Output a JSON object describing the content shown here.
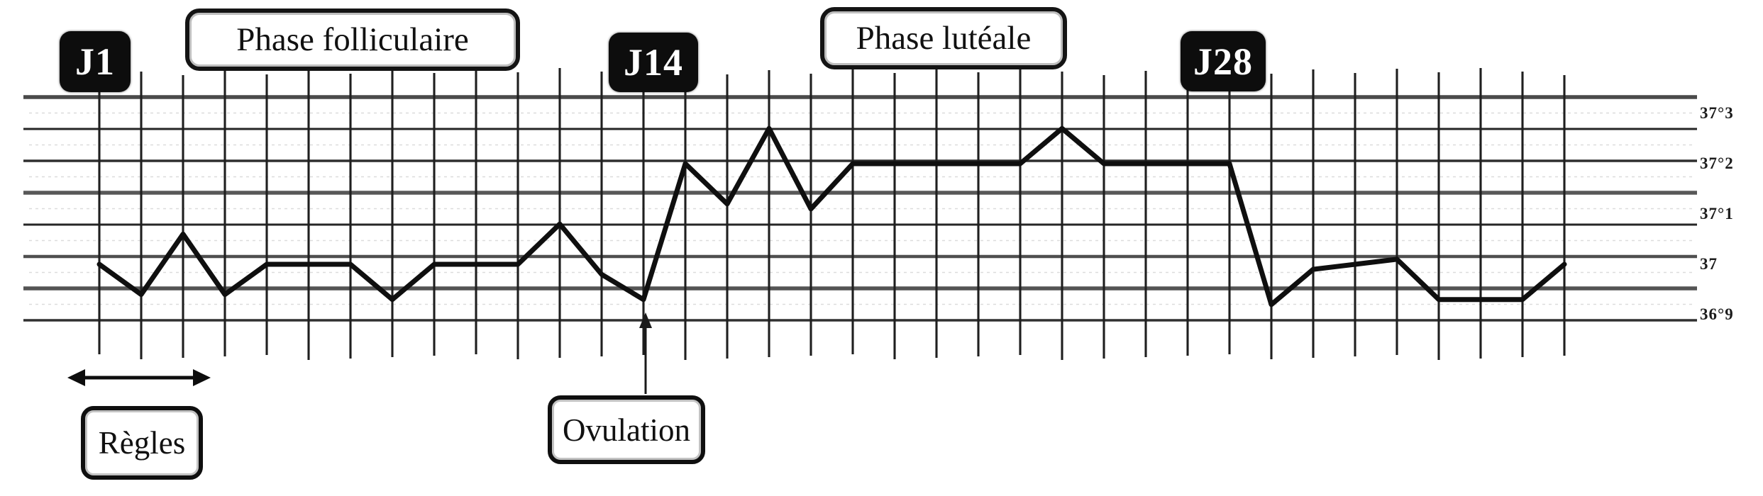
{
  "figure": {
    "day_badges": [
      {
        "label": "J1",
        "day": 1
      },
      {
        "label": "J14",
        "day": 14
      },
      {
        "label": "J28",
        "day": 28
      }
    ],
    "phase_boxes": [
      {
        "label": "Phase folliculaire"
      },
      {
        "label": "Phase lutéale"
      }
    ],
    "annotations": {
      "regles_label": "Règles",
      "ovulation_label": "Ovulation"
    },
    "colors": {
      "ink": "#111111",
      "paper": "#ffffff"
    }
  },
  "chart_data": {
    "type": "line",
    "title": "",
    "xlabel": "",
    "ylabel": "",
    "x": [
      1,
      2,
      3,
      4,
      5,
      6,
      7,
      8,
      9,
      10,
      11,
      12,
      13,
      14,
      15,
      16,
      17,
      18,
      19,
      20,
      21,
      22,
      23,
      24,
      25,
      26,
      27,
      28,
      29,
      30,
      31,
      32,
      33,
      34,
      35,
      36
    ],
    "series": [
      {
        "name": "température",
        "values": [
          37.0,
          36.94,
          37.06,
          36.94,
          37.0,
          37.0,
          37.0,
          36.93,
          37.0,
          37.0,
          37.0,
          37.08,
          36.98,
          36.93,
          37.2,
          37.12,
          37.27,
          37.11,
          37.2,
          37.2,
          37.2,
          37.2,
          37.2,
          37.27,
          37.2,
          37.2,
          37.2,
          37.2,
          36.92,
          36.99,
          37.0,
          37.01,
          36.93,
          36.93,
          36.93,
          37.0
        ]
      }
    ],
    "ylim": [
      36.85,
      37.35
    ],
    "y_ticks": [
      {
        "label": "37°3",
        "temp": 37.3
      },
      {
        "label": "37°2",
        "temp": 37.2
      },
      {
        "label": "37°1",
        "temp": 37.1
      },
      {
        "label": "37",
        "temp": 37.0
      },
      {
        "label": "36°9",
        "temp": 36.9
      }
    ],
    "grid": true,
    "legend": false,
    "ovulation_day": 14,
    "regles_days": [
      1,
      4
    ]
  }
}
